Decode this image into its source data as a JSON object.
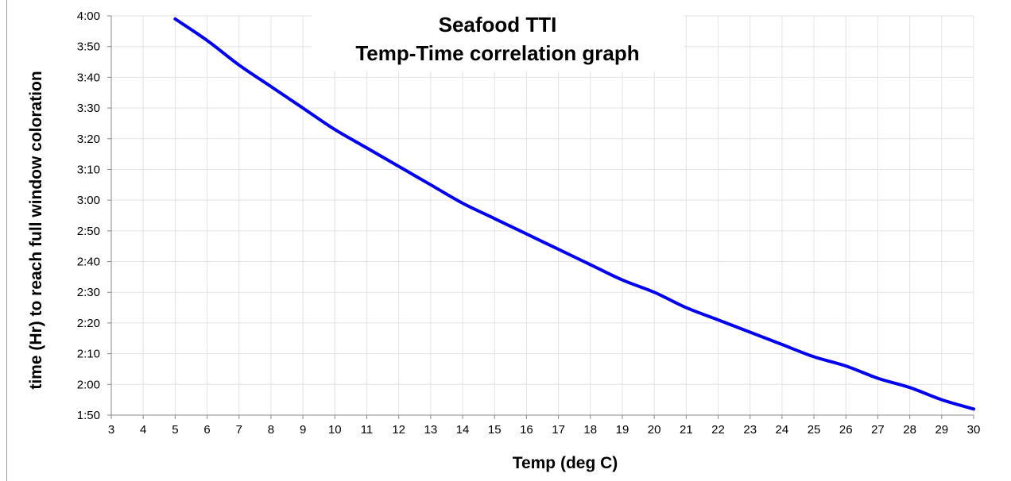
{
  "chart_data": {
    "type": "line",
    "title": [
      "Seafood TTI",
      "Temp-Time correlation graph"
    ],
    "xlabel": "Temp (deg C)",
    "ylabel": "time (Hr) to reach full window coloration",
    "xlim": [
      3,
      30
    ],
    "ylim_hours": [
      1.8333,
      4.0
    ],
    "x_ticks": [
      "3",
      "4",
      "5",
      "6",
      "7",
      "8",
      "9",
      "10",
      "11",
      "12",
      "13",
      "14",
      "15",
      "16",
      "17",
      "18",
      "19",
      "20",
      "21",
      "22",
      "23",
      "24",
      "25",
      "26",
      "27",
      "28",
      "29",
      "30"
    ],
    "y_ticks": [
      "1:50",
      "2:00",
      "2:10",
      "2:20",
      "2:30",
      "2:40",
      "2:50",
      "3:00",
      "3:10",
      "3:20",
      "3:30",
      "3:40",
      "3:50",
      "4:00"
    ],
    "grid": true,
    "series": [
      {
        "color": "#0000ee",
        "x": [
          5,
          6,
          7,
          8,
          9,
          10,
          11,
          12,
          13,
          14,
          15,
          16,
          17,
          18,
          19,
          20,
          21,
          22,
          23,
          24,
          25,
          26,
          27,
          28,
          29,
          30
        ],
        "y": [
          "3:59",
          "3:52",
          "3:44",
          "3:37",
          "3:30",
          "3:23",
          "3:17",
          "3:11",
          "3:05",
          "2:59",
          "2:54",
          "2:49",
          "2:44",
          "2:39",
          "2:34",
          "2:30",
          "2:25",
          "2:21",
          "2:17",
          "2:13",
          "2:09",
          "2:06",
          "2:02",
          "1:59",
          "1:55",
          "1:52"
        ]
      }
    ]
  }
}
